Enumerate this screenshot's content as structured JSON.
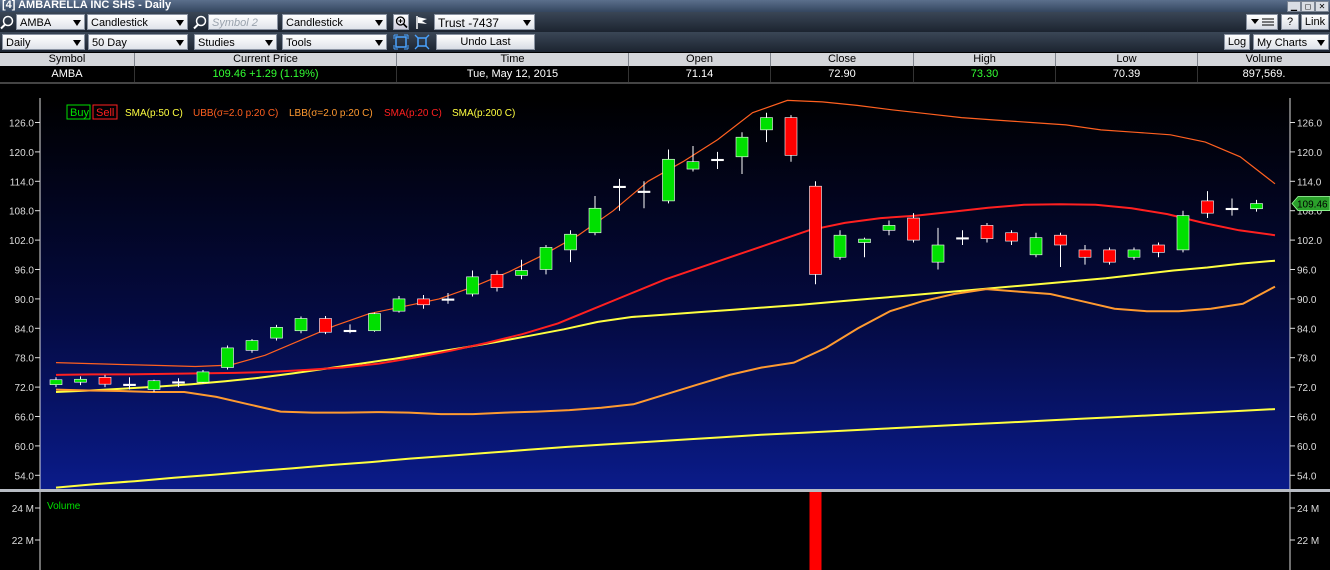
{
  "window": {
    "title": "[4] AMBARELLA INC SHS - Daily"
  },
  "toolbar1": {
    "symbol": "AMBA",
    "chart_type": "Candlestick",
    "symbol2_placeholder": "Symbol 2",
    "chart_type2": "Candlestick",
    "trust": "Trust -7437",
    "link": "Link"
  },
  "toolbar2": {
    "period": "Daily",
    "range": "50 Day",
    "studies": "Studies",
    "tools": "Tools",
    "undo": "Undo Last",
    "log": "Log",
    "my_charts": "My Charts"
  },
  "quote_header": [
    "Symbol",
    "Current Price",
    "Time",
    "Open",
    "Close",
    "High",
    "Low",
    "Volume"
  ],
  "quote": {
    "symbol": "AMBA",
    "price": "109.46",
    "change": "+1.29 (1.19%)",
    "time": "Tue, May 12, 2015",
    "open": "71.14",
    "close": "72.90",
    "high": "73.30",
    "low": "70.39",
    "volume": "897,569."
  },
  "colors": {
    "up": "#00e000",
    "down": "#ff0000",
    "sma50": "#ffff40",
    "ubb": "#ff6020",
    "lbb": "#ff9a30",
    "sma20": "#ff2020",
    "sma200": "#ffff40"
  },
  "chart_data": {
    "type": "candlestick",
    "ylim": [
      51,
      131
    ],
    "y_ticks": [
      "54.0",
      "60.0",
      "66.0",
      "72.0",
      "78.0",
      "84.0",
      "90.0",
      "96.0",
      "102.0",
      "108.0",
      "114.0",
      "120.0",
      "126.0"
    ],
    "current_price_label": "109.46",
    "legend": {
      "buy": "Buy",
      "sell": "Sell",
      "sma50": "SMA(p:50 C)",
      "ubb": "UBB(σ=2.0 p:20 C)",
      "lbb": "LBB(σ=2.0 p:20 C)",
      "sma20": "SMA(p:20 C)",
      "sma200": "SMA(p:200 C)"
    },
    "candles": [
      {
        "o": 72.5,
        "h": 74.0,
        "l": 72.0,
        "c": 73.5
      },
      {
        "o": 73.0,
        "h": 74.2,
        "l": 72.4,
        "c": 73.6
      },
      {
        "o": 74.0,
        "h": 74.5,
        "l": 72.0,
        "c": 72.6
      },
      {
        "o": 72.6,
        "h": 74.0,
        "l": 71.5,
        "c": 72.4
      },
      {
        "o": 71.5,
        "h": 73.5,
        "l": 71.0,
        "c": 73.3
      },
      {
        "o": 72.9,
        "h": 73.8,
        "l": 72.0,
        "c": 73.1
      },
      {
        "o": 73.0,
        "h": 75.5,
        "l": 72.8,
        "c": 75.1
      },
      {
        "o": 76.0,
        "h": 80.5,
        "l": 75.6,
        "c": 80.0
      },
      {
        "o": 79.5,
        "h": 81.8,
        "l": 79.0,
        "c": 81.5
      },
      {
        "o": 82.0,
        "h": 84.7,
        "l": 81.5,
        "c": 84.2
      },
      {
        "o": 83.5,
        "h": 86.4,
        "l": 83.0,
        "c": 86.0
      },
      {
        "o": 86.0,
        "h": 86.5,
        "l": 82.8,
        "c": 83.2
      },
      {
        "o": 83.6,
        "h": 84.8,
        "l": 83.0,
        "c": 83.6
      },
      {
        "o": 83.5,
        "h": 87.2,
        "l": 83.3,
        "c": 87.0
      },
      {
        "o": 87.5,
        "h": 90.6,
        "l": 87.2,
        "c": 90.0
      },
      {
        "o": 90.0,
        "h": 90.8,
        "l": 88.0,
        "c": 88.8
      },
      {
        "o": 90.0,
        "h": 91.2,
        "l": 89.0,
        "c": 90.0
      },
      {
        "o": 91.0,
        "h": 95.8,
        "l": 90.5,
        "c": 94.5
      },
      {
        "o": 95.0,
        "h": 95.8,
        "l": 91.5,
        "c": 92.3
      },
      {
        "o": 94.8,
        "h": 98.0,
        "l": 94.0,
        "c": 95.8
      },
      {
        "o": 96.0,
        "h": 101.0,
        "l": 95.0,
        "c": 100.5
      },
      {
        "o": 100.0,
        "h": 104.0,
        "l": 97.5,
        "c": 103.2
      },
      {
        "o": 103.5,
        "h": 111.0,
        "l": 103.0,
        "c": 108.5
      },
      {
        "o": 113.0,
        "h": 114.5,
        "l": 108.0,
        "c": 113.0
      },
      {
        "o": 112.0,
        "h": 114.0,
        "l": 108.5,
        "c": 112.0
      },
      {
        "o": 110.0,
        "h": 120.5,
        "l": 109.5,
        "c": 118.5
      },
      {
        "o": 116.5,
        "h": 121.2,
        "l": 116.0,
        "c": 118.0
      },
      {
        "o": 118.5,
        "h": 120.0,
        "l": 116.5,
        "c": 118.5
      },
      {
        "o": 119.0,
        "h": 124.0,
        "l": 115.5,
        "c": 123.0
      },
      {
        "o": 124.5,
        "h": 128.0,
        "l": 122.0,
        "c": 127.0
      },
      {
        "o": 127.0,
        "h": 127.5,
        "l": 118.0,
        "c": 119.3
      },
      {
        "o": 113.0,
        "h": 114.0,
        "l": 93.0,
        "c": 95.0
      },
      {
        "o": 98.5,
        "h": 104.0,
        "l": 98.0,
        "c": 103.0
      },
      {
        "o": 101.5,
        "h": 102.5,
        "l": 98.5,
        "c": 102.2
      },
      {
        "o": 104.0,
        "h": 106.0,
        "l": 103.0,
        "c": 105.0
      },
      {
        "o": 106.5,
        "h": 107.5,
        "l": 101.5,
        "c": 102.0
      },
      {
        "o": 97.5,
        "h": 104.5,
        "l": 96.0,
        "c": 101.0
      },
      {
        "o": 102.5,
        "h": 104.0,
        "l": 101.0,
        "c": 102.5
      },
      {
        "o": 105.0,
        "h": 105.5,
        "l": 101.5,
        "c": 102.3
      },
      {
        "o": 103.5,
        "h": 104.0,
        "l": 101.0,
        "c": 101.8
      },
      {
        "o": 99.0,
        "h": 103.5,
        "l": 98.5,
        "c": 102.5
      },
      {
        "o": 103.0,
        "h": 103.5,
        "l": 96.5,
        "c": 101.0
      },
      {
        "o": 100.0,
        "h": 101.0,
        "l": 97.0,
        "c": 98.5
      },
      {
        "o": 100.0,
        "h": 100.5,
        "l": 97.0,
        "c": 97.5
      },
      {
        "o": 98.5,
        "h": 100.5,
        "l": 98.0,
        "c": 100.0
      },
      {
        "o": 101.0,
        "h": 101.5,
        "l": 98.5,
        "c": 99.5
      },
      {
        "o": 100.0,
        "h": 108.0,
        "l": 99.5,
        "c": 107.0
      },
      {
        "o": 110.0,
        "h": 112.0,
        "l": 106.5,
        "c": 107.5
      },
      {
        "o": 108.5,
        "h": 110.5,
        "l": 107.0,
        "c": 108.5
      },
      {
        "o": 108.4,
        "h": 110.2,
        "l": 107.8,
        "c": 109.46
      }
    ],
    "sma50": [
      71.0,
      71.3,
      71.7,
      72.1,
      72.6,
      73.2,
      73.9,
      74.8,
      75.8,
      76.8,
      77.8,
      78.9,
      80.0,
      81.2,
      82.5,
      83.8,
      85.3,
      86.3,
      86.8,
      87.3,
      87.8,
      88.3,
      88.8,
      89.4,
      90.0,
      90.6,
      91.2,
      91.8,
      92.4,
      93.0,
      93.6,
      94.2,
      95.0,
      95.8,
      96.4,
      97.2,
      97.8
    ],
    "sma200": [
      51.5,
      52.2,
      52.8,
      53.5,
      54.1,
      54.8,
      55.4,
      56.1,
      56.7,
      57.4,
      58.0,
      58.6,
      59.2,
      59.8,
      60.3,
      60.8,
      61.3,
      61.8,
      62.3,
      62.7,
      63.1,
      63.5,
      63.9,
      64.3,
      64.7,
      65.1,
      65.5,
      65.9,
      66.3,
      66.7,
      67.1,
      67.5
    ],
    "ubb": [
      77.0,
      76.8,
      76.6,
      76.4,
      76.2,
      76.5,
      78.5,
      81.5,
      84.5,
      87.0,
      88.5,
      90.0,
      92.5,
      95.5,
      99.0,
      103.0,
      108.0,
      114.0,
      118.0,
      122.5,
      128.0,
      130.5,
      130.2,
      129.5,
      128.6,
      127.8,
      127.0,
      126.5,
      126.0,
      125.5,
      124.5,
      124.0,
      123.5,
      122.0,
      119.0,
      113.5
    ],
    "lbb": [
      71.5,
      71.3,
      71.2,
      71.0,
      71.0,
      70.0,
      68.5,
      67.0,
      66.8,
      66.8,
      66.9,
      66.8,
      66.5,
      66.5,
      66.8,
      67.0,
      67.3,
      67.8,
      68.5,
      70.5,
      72.5,
      74.5,
      76.0,
      77.0,
      80.0,
      84.0,
      87.5,
      89.5,
      91.0,
      92.0,
      91.5,
      91.0,
      89.5,
      88.0,
      87.5,
      87.5,
      88.0,
      89.0,
      92.5
    ],
    "sma20": [
      74.5,
      74.6,
      74.6,
      74.7,
      74.8,
      74.9,
      75.1,
      75.5,
      76.0,
      76.8,
      78.0,
      79.4,
      81.0,
      82.8,
      85.0,
      88.0,
      91.0,
      94.0,
      96.5,
      99.0,
      101.5,
      104.0,
      105.5,
      106.5,
      107.0,
      107.8,
      108.6,
      109.2,
      109.3,
      109.2,
      108.5,
      107.3,
      105.5,
      104.0,
      103.0
    ],
    "volume": {
      "label": "Volume",
      "y_ticks": [
        "24 M",
        "22 M"
      ]
    }
  }
}
